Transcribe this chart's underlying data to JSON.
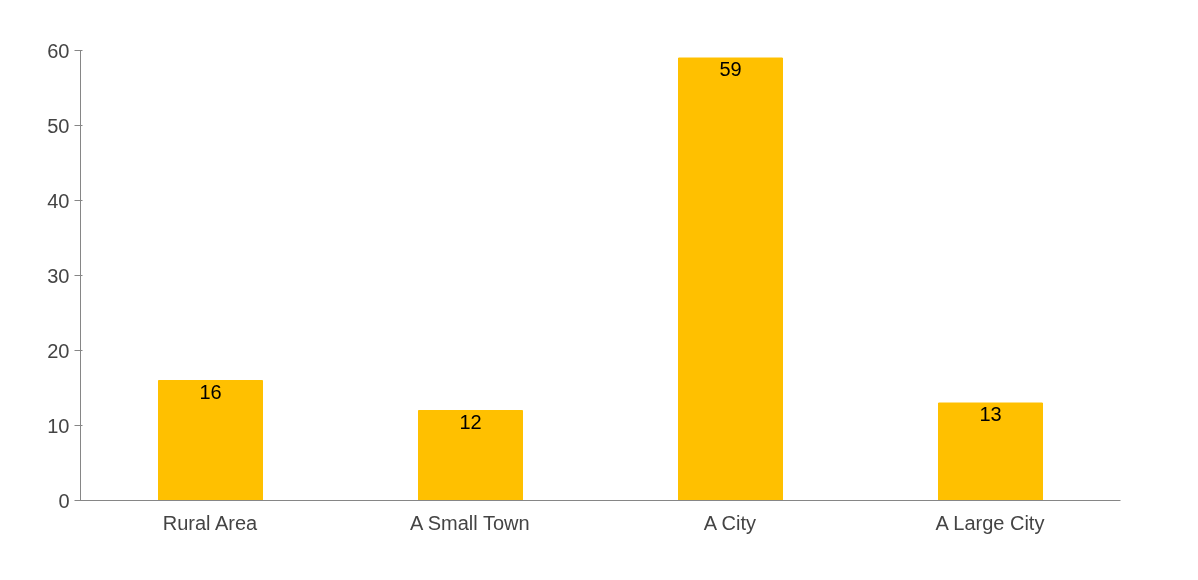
{
  "chart_data": {
    "type": "bar",
    "categories": [
      "Rural Area",
      "A Small Town",
      "A City",
      "A Large City"
    ],
    "values": [
      16,
      12,
      59,
      13
    ],
    "color": "#ffc000",
    "ylim": [
      0,
      60
    ],
    "yticks": [
      0,
      10,
      20,
      30,
      40,
      50,
      60
    ],
    "data_labels": true,
    "grid": false
  }
}
